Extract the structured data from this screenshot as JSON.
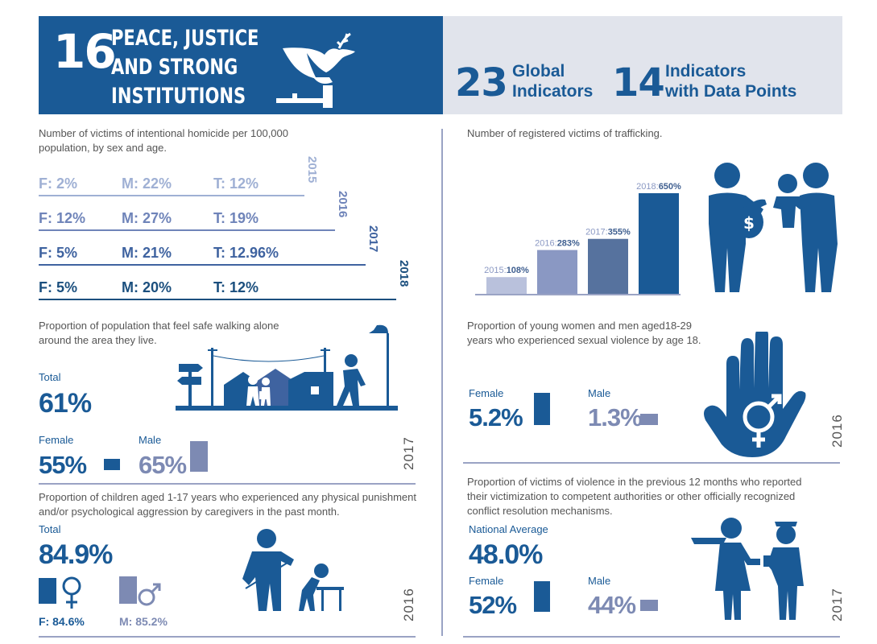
{
  "header": {
    "goal_number": "16",
    "goal_title_lines": [
      "PEACE, JUSTICE",
      "AND STRONG",
      "INSTITUTIONS"
    ],
    "global_count": "23",
    "global_label_lines": [
      "Global",
      "Indicators"
    ],
    "indicators_count": "14",
    "indicators_label_lines": [
      "Indicators",
      "with Data Points"
    ]
  },
  "homicide": {
    "caption": "Number of victims of intentional homicide per 100,000 population, by sex and age.",
    "rows": [
      {
        "year": "2015",
        "f": "F: 2%",
        "m": "M: 22%",
        "t": "T: 12%",
        "color": "#9fb0d4"
      },
      {
        "year": "2016",
        "f": "F: 12%",
        "m": "M: 27%",
        "t": "T: 19%",
        "color": "#6f84b9"
      },
      {
        "year": "2017",
        "f": "F: 5%",
        "m": "M: 21%",
        "t": "T: 12.96%",
        "color": "#3f63a0"
      },
      {
        "year": "2018",
        "f": "F: 5%",
        "m": "M: 20%",
        "t": "T: 12%",
        "color": "#1b4f7e"
      }
    ]
  },
  "trafficking": {
    "caption": "Number of registered victims of trafficking.",
    "bars": [
      {
        "year": "2015",
        "value": 108,
        "color": "#b9c1dc"
      },
      {
        "year": "2016",
        "value": 283,
        "color": "#8a98c3"
      },
      {
        "year": "2017",
        "value": 355,
        "color": "#56729e"
      },
      {
        "year": "2018",
        "value": 650,
        "color": "#1a5a96"
      }
    ]
  },
  "safe_walking": {
    "caption": "Proportion of population that feel safe walking alone around the area they live.",
    "total_label": "Total",
    "total_value": "61%",
    "female_label": "Female",
    "female_value": "55%",
    "female_fraction": 0.55,
    "male_label": "Male",
    "male_value": "65%",
    "male_fraction": 0.65,
    "year": "2017"
  },
  "sexual_violence": {
    "caption": "Proportion of young women and men aged18-29 years who experienced sexual violence by age 18.",
    "female_label": "Female",
    "female_value": "5.2%",
    "female_fraction": 0.052,
    "male_label": "Male",
    "male_value": "1.3%",
    "male_fraction": 0.013,
    "year": "2016"
  },
  "child_punishment": {
    "caption": "Proportion of children aged 1-17 years who experienced any physical punishment and/or psychological aggression by caregivers in the past month.",
    "total_label": "Total",
    "total_value": "84.9%",
    "female_value": "F: 84.6%",
    "male_value": "M: 85.2%",
    "year": "2016"
  },
  "reporting": {
    "caption": "Proportion of victims of violence in the previous 12 months who reported their victimization to competent authorities or other officially recognized conflict resolution mechanisms.",
    "national_label": "National Average",
    "national_value": "48.0%",
    "female_label": "Female",
    "female_value": "52%",
    "female_fraction": 0.52,
    "male_label": "Male",
    "male_value": "44%",
    "male_fraction": 0.44,
    "year": "2017"
  },
  "chart_data": {
    "type": "bar",
    "title": "Number of registered victims of trafficking.",
    "categories": [
      "2015",
      "2016",
      "2017",
      "2018"
    ],
    "values": [
      108,
      283,
      355,
      650
    ]
  }
}
